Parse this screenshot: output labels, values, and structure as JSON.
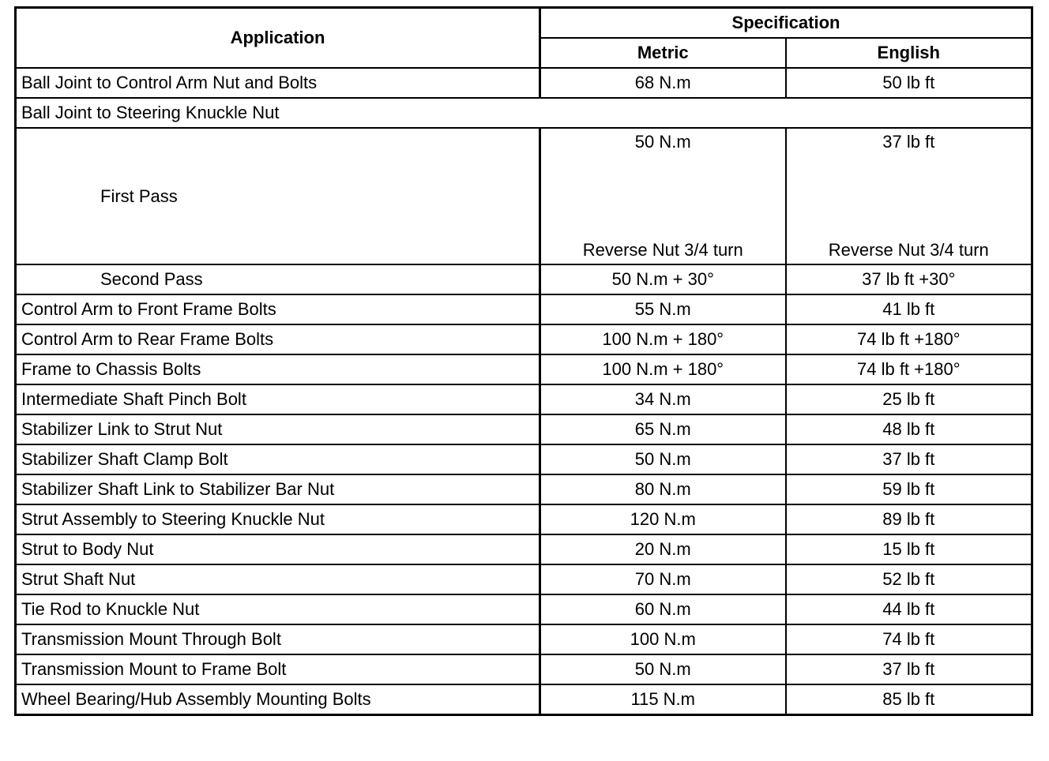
{
  "header": {
    "application": "Application",
    "specification": "Specification",
    "metric": "Metric",
    "english": "English"
  },
  "rows": [
    {
      "application": "Ball Joint to Control Arm Nut and Bolts",
      "metric": "68 N.m",
      "english": "50 lb ft"
    },
    {
      "application": "Ball Joint to Steering Knuckle Nut",
      "span": true
    },
    {
      "application": "First Pass",
      "sub": true,
      "tall": true,
      "metric": "50 N.m",
      "metric2": "Reverse Nut 3/4 turn",
      "english": "37 lb ft",
      "english2": "Reverse Nut 3/4 turn"
    },
    {
      "application": "Second Pass",
      "sub": true,
      "metric": "50 N.m + 30°",
      "english": "37 lb ft +30°"
    },
    {
      "application": "Control Arm to Front Frame Bolts",
      "metric": "55 N.m",
      "english": "41 lb ft"
    },
    {
      "application": "Control Arm to Rear Frame Bolts",
      "metric": "100 N.m + 180°",
      "english": "74 lb ft +180°"
    },
    {
      "application": "Frame to Chassis Bolts",
      "metric": "100 N.m + 180°",
      "english": "74 lb ft +180°"
    },
    {
      "application": "Intermediate Shaft Pinch Bolt",
      "metric": "34 N.m",
      "english": "25 lb ft"
    },
    {
      "application": "Stabilizer Link to Strut Nut",
      "metric": "65 N.m",
      "english": "48 lb ft"
    },
    {
      "application": "Stabilizer Shaft Clamp Bolt",
      "metric": "50 N.m",
      "english": "37 lb ft"
    },
    {
      "application": "Stabilizer Shaft Link to Stabilizer Bar Nut",
      "metric": "80 N.m",
      "english": "59 lb ft"
    },
    {
      "application": "Strut Assembly to Steering Knuckle Nut",
      "metric": "120 N.m",
      "english": "89 lb ft"
    },
    {
      "application": "Strut to Body Nut",
      "metric": "20 N.m",
      "english": "15 lb ft"
    },
    {
      "application": "Strut Shaft Nut",
      "metric": "70 N.m",
      "english": "52 lb ft"
    },
    {
      "application": "Tie Rod to Knuckle Nut",
      "metric": "60 N.m",
      "english": "44 lb ft"
    },
    {
      "application": "Transmission Mount Through Bolt",
      "metric": "100 N.m",
      "english": "74 lb ft"
    },
    {
      "application": "Transmission Mount to Frame Bolt",
      "metric": "50 N.m",
      "english": "37 lb ft"
    },
    {
      "application": "Wheel Bearing/Hub Assembly Mounting Bolts",
      "metric": "115 N.m",
      "english": "85 lb ft"
    }
  ]
}
